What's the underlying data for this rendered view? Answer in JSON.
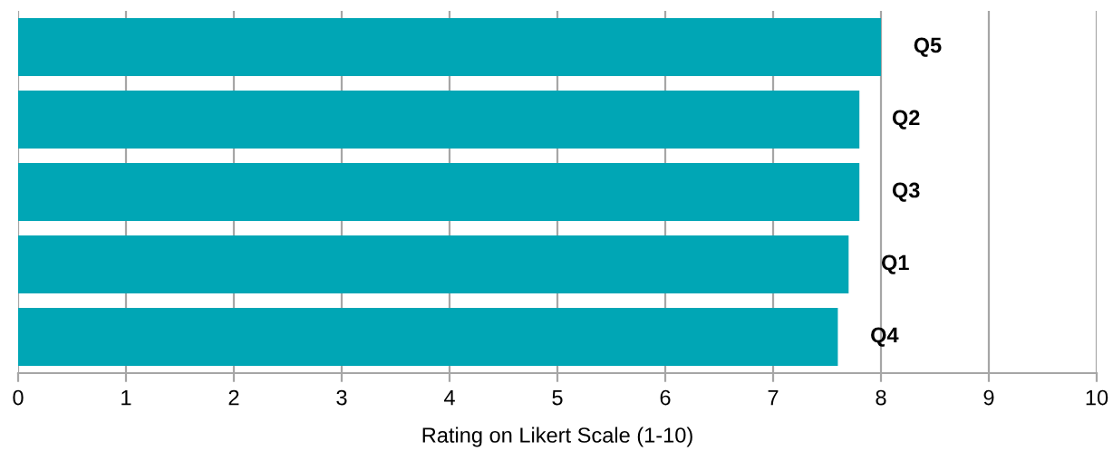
{
  "chart_data": {
    "type": "bar",
    "orientation": "horizontal",
    "xlabel": "Rating on Likert Scale (1-10)",
    "categories": [
      "Q5",
      "Q2",
      "Q3",
      "Q1",
      "Q4"
    ],
    "values": [
      8.0,
      7.8,
      7.8,
      7.7,
      7.6
    ],
    "color": "#00a6b5",
    "xlim": [
      0,
      10
    ],
    "xticks": [
      0,
      1,
      2,
      3,
      4,
      5,
      6,
      7,
      8,
      9,
      10
    ],
    "grid": "x"
  }
}
